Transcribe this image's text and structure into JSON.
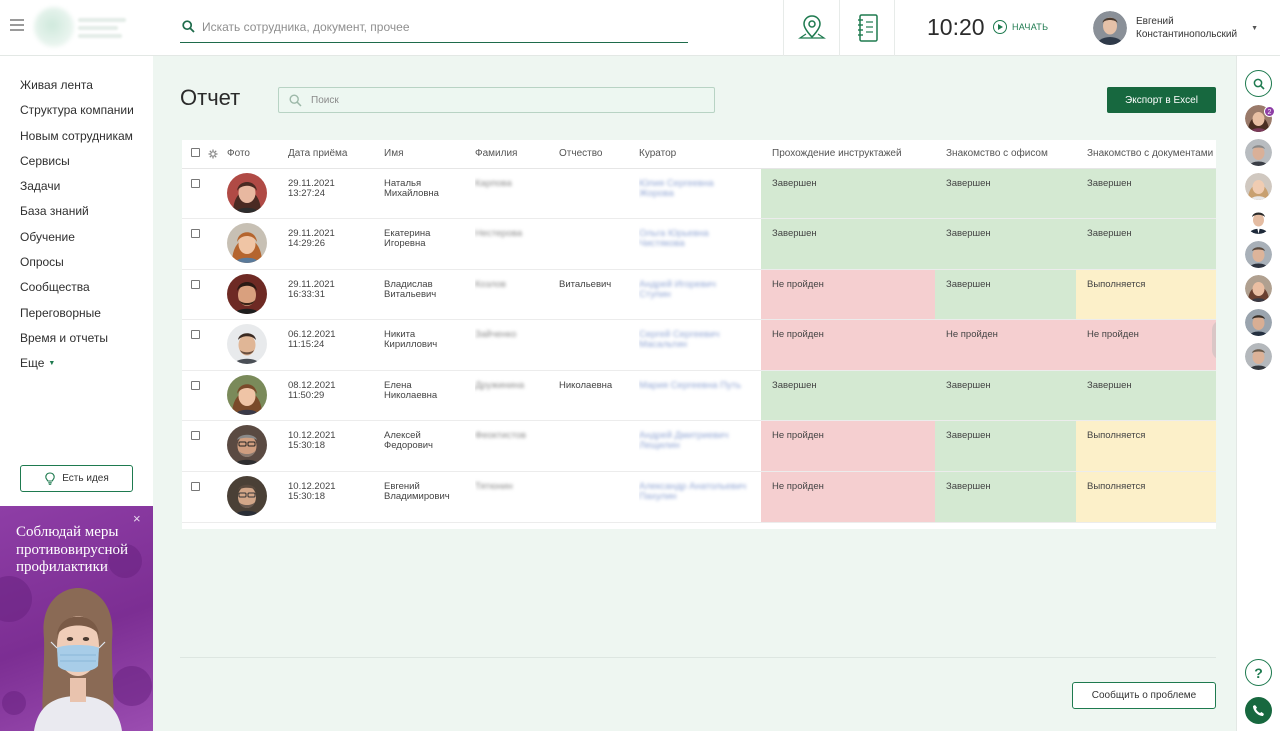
{
  "header": {
    "search_placeholder": "Искать сотрудника, документ, прочее",
    "time": "10:20",
    "start_label": "НАЧАТЬ",
    "user_first_name": "Евгений",
    "user_last_name": "Константинопольский"
  },
  "sidebar": {
    "items": [
      {
        "label": "Живая лента"
      },
      {
        "label": "Структура компании"
      },
      {
        "label": "Новым сотрудникам"
      },
      {
        "label": "Сервисы"
      },
      {
        "label": "Задачи"
      },
      {
        "label": "База знаний"
      },
      {
        "label": "Обучение"
      },
      {
        "label": "Опросы"
      },
      {
        "label": "Сообщества"
      },
      {
        "label": "Переговорные"
      },
      {
        "label": "Время и отчеты"
      },
      {
        "label": "Еще"
      }
    ],
    "idea_button": "Есть идея",
    "banner_text": "Соблюдай меры противовирусной профилактики",
    "banner_close": "×"
  },
  "main": {
    "title": "Отчет",
    "search_placeholder": "Поиск",
    "export_button": "Экспорт в Excel",
    "report_button": "Сообщить о проблеме"
  },
  "table": {
    "headers": {
      "photo": "Фото",
      "date": "Дата приёма",
      "first_name": "Имя",
      "last_name": "Фамилия",
      "patronymic": "Отчество",
      "curator": "Куратор",
      "briefings": "Прохождение инструктажей",
      "office": "Знакомство с офисом",
      "documents": "Знакомство с документами"
    },
    "rows": [
      {
        "date": "29.11.2021",
        "time": "13:27:24",
        "first_name": "Наталья",
        "patronymic_line": "Михайловна",
        "last_name": "Карпова",
        "patronymic": "",
        "curator_1": "Юлия Сергеевна",
        "curator_2": "Жорова",
        "briefings": "Завершен",
        "briefings_status": "done",
        "office": "Завершен",
        "office_status": "done",
        "documents": "Завершен",
        "documents_status": "done"
      },
      {
        "date": "29.11.2021",
        "time": "14:29:26",
        "first_name": "Екатерина",
        "patronymic_line": "Игоревна",
        "last_name": "Нестерова",
        "patronymic": "",
        "curator_1": "Ольга Юрьевна",
        "curator_2": "Чистякова",
        "briefings": "Завершен",
        "briefings_status": "done",
        "office": "Завершен",
        "office_status": "done",
        "documents": "Завершен",
        "documents_status": "done"
      },
      {
        "date": "29.11.2021",
        "time": "16:33:31",
        "first_name": "Владислав",
        "patronymic_line": "Витальевич",
        "last_name": "Козлов",
        "patronymic": "Витальевич",
        "curator_1": "Андрей Игоревич",
        "curator_2": "Ступин",
        "briefings": "Не пройден",
        "briefings_status": "fail",
        "office": "Завершен",
        "office_status": "done",
        "documents": "Выполняется",
        "documents_status": "progress"
      },
      {
        "date": "06.12.2021",
        "time": "11:15:24",
        "first_name": "Никита",
        "patronymic_line": "Кириллович",
        "last_name": "Зайченко",
        "patronymic": "",
        "curator_1": "Сергей Сергеевич",
        "curator_2": "Масальтин",
        "briefings": "Не пройден",
        "briefings_status": "fail",
        "office": "Не пройден",
        "office_status": "fail",
        "documents": "Не пройден",
        "documents_status": "fail"
      },
      {
        "date": "08.12.2021",
        "time": "11:50:29",
        "first_name": "Елена",
        "patronymic_line": "Николаевна",
        "last_name": "Дружинина",
        "patronymic": "Николаевна",
        "curator_1": "Мария Сергеевна Путь",
        "curator_2": "",
        "briefings": "Завершен",
        "briefings_status": "done",
        "office": "Завершен",
        "office_status": "done",
        "documents": "Завершен",
        "documents_status": "done"
      },
      {
        "date": "10.12.2021",
        "time": "15:30:18",
        "first_name": "Алексей",
        "patronymic_line": "Федорович",
        "last_name": "Феоктистов",
        "patronymic": "",
        "curator_1": "Андрей Дмитриевич",
        "curator_2": "Лещилин",
        "briefings": "Не пройден",
        "briefings_status": "fail",
        "office": "Завершен",
        "office_status": "done",
        "documents": "Выполняется",
        "documents_status": "progress"
      },
      {
        "date": "10.12.2021",
        "time": "15:30:18",
        "first_name": "Евгений",
        "patronymic_line": "Владимирович",
        "last_name": "Тятюнин",
        "patronymic": "",
        "curator_1": "Александр Анатольевич",
        "curator_2": "Пахулин",
        "briefings": "Не пройден",
        "briefings_status": "fail",
        "office": "Завершен",
        "office_status": "done",
        "documents": "Выполняется",
        "documents_status": "progress"
      }
    ]
  },
  "right_rail": {
    "badge_count": "2",
    "help_label": "?"
  },
  "colors": {
    "accent": "#17683f",
    "done": "#d4e9d2",
    "fail": "#f5cfd0",
    "progress": "#fcf0c9",
    "banner": "#8e3ea6"
  },
  "icons": [
    "menu-icon",
    "search-icon",
    "map-pin-icon",
    "notebook-icon",
    "play-icon",
    "gear-icon",
    "lightbulb-icon",
    "help-icon",
    "phone-icon",
    "close-icon"
  ]
}
